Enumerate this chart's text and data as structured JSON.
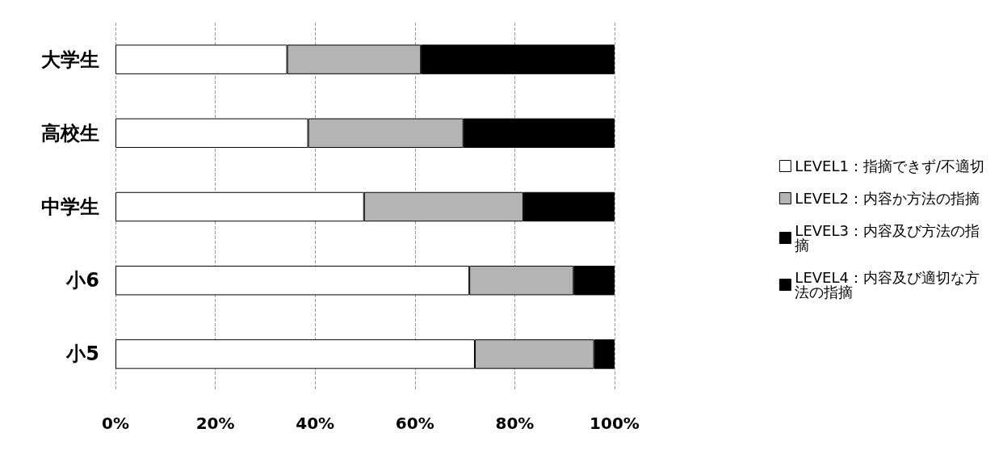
{
  "chart_data": {
    "type": "bar",
    "orientation": "horizontal",
    "stacked": true,
    "categories": [
      "大学生",
      "高校生",
      "中学生",
      "小6",
      "小5"
    ],
    "series": [
      {
        "name": "LEVEL1：指摘できず/不適切",
        "color": "#ffffff",
        "values": [
          34.4,
          38.6,
          49.8,
          70.9,
          72.0
        ]
      },
      {
        "name": "LEVEL2：内容か方法の指摘",
        "color": "#b4b4b4",
        "values": [
          26.8,
          31.1,
          31.9,
          20.9,
          23.9
        ]
      },
      {
        "name": "LEVEL3：内容及び方法の指摘",
        "color": "#000000",
        "values": [
          38.8,
          30.3,
          18.3,
          8.2,
          4.1
        ]
      },
      {
        "name": "LEVEL4：内容及び適切な方法の指摘",
        "color": "#000000",
        "values": [
          null,
          null,
          null,
          null,
          null
        ]
      }
    ],
    "xlim": [
      0,
      100
    ],
    "xticks": [
      {
        "value": 0,
        "label": "0%"
      },
      {
        "value": 20,
        "label": "20%"
      },
      {
        "value": 40,
        "label": "40%"
      },
      {
        "value": 60,
        "label": "60%"
      },
      {
        "value": 80,
        "label": "80%"
      },
      {
        "value": 100,
        "label": "100%"
      }
    ],
    "grid": "x",
    "legend": "right",
    "marker": "square"
  }
}
